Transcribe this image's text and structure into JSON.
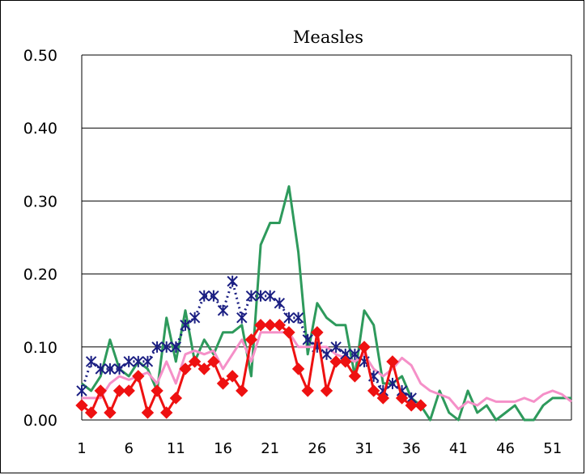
{
  "chart_data": {
    "type": "line",
    "title": "Measles",
    "xlabel": "",
    "ylabel": "",
    "ylim": [
      0,
      0.5
    ],
    "xlim": [
      1,
      53
    ],
    "y_ticks": [
      "0.00",
      "0.10",
      "0.20",
      "0.30",
      "0.40",
      "0.50"
    ],
    "y_tick_values": [
      0,
      0.1,
      0.2,
      0.3,
      0.4,
      0.5
    ],
    "x_ticks": [
      "1",
      "6",
      "11",
      "16",
      "21",
      "26",
      "31",
      "36",
      "41",
      "46",
      "51"
    ],
    "x_tick_values": [
      1,
      6,
      11,
      16,
      21,
      26,
      31,
      36,
      41,
      46,
      51
    ],
    "grid": "horizontal",
    "legend": "none",
    "series": [
      {
        "color": "#2e9a5c",
        "marker": "none",
        "line": "solid",
        "x": [
          1,
          2,
          3,
          4,
          5,
          6,
          7,
          8,
          9,
          10,
          11,
          12,
          13,
          14,
          15,
          16,
          17,
          18,
          19,
          20,
          21,
          22,
          23,
          24,
          25,
          26,
          27,
          28,
          29,
          30,
          31,
          32,
          33,
          34,
          35,
          36,
          37,
          38,
          39,
          40,
          41,
          42,
          43,
          44,
          45,
          46,
          47,
          48,
          49,
          50,
          51,
          52,
          53
        ],
        "values": [
          0.05,
          0.04,
          0.06,
          0.11,
          0.07,
          0.06,
          0.08,
          0.07,
          0.04,
          0.14,
          0.08,
          0.15,
          0.08,
          0.11,
          0.09,
          0.12,
          0.12,
          0.13,
          0.06,
          0.24,
          0.27,
          0.27,
          0.32,
          0.23,
          0.09,
          0.16,
          0.14,
          0.13,
          0.13,
          0.06,
          0.15,
          0.13,
          0.05,
          0.05,
          0.06,
          0.03,
          0.02,
          0.0,
          0.04,
          0.01,
          0.0,
          0.04,
          0.01,
          0.02,
          0.0,
          0.01,
          0.02,
          0.0,
          0.0,
          0.02,
          0.03,
          0.03,
          0.03
        ]
      },
      {
        "color": "#f590c8",
        "marker": "none",
        "line": "solid",
        "x": [
          1,
          2,
          3,
          4,
          5,
          6,
          7,
          8,
          9,
          10,
          11,
          12,
          13,
          14,
          15,
          16,
          17,
          18,
          19,
          20,
          21,
          22,
          23,
          24,
          25,
          26,
          27,
          28,
          29,
          30,
          31,
          32,
          33,
          34,
          35,
          36,
          37,
          38,
          39,
          40,
          41,
          42,
          43,
          44,
          45,
          46,
          47,
          48,
          49,
          50,
          51,
          52,
          53
        ],
        "values": [
          0.03,
          0.03,
          0.03,
          0.05,
          0.06,
          0.055,
          0.06,
          0.065,
          0.05,
          0.08,
          0.05,
          0.09,
          0.095,
          0.09,
          0.095,
          0.07,
          0.09,
          0.11,
          0.08,
          0.12,
          0.12,
          0.12,
          0.12,
          0.1,
          0.1,
          0.1,
          0.1,
          0.09,
          0.085,
          0.08,
          0.09,
          0.07,
          0.06,
          0.07,
          0.085,
          0.075,
          0.05,
          0.04,
          0.035,
          0.03,
          0.015,
          0.025,
          0.02,
          0.03,
          0.025,
          0.025,
          0.025,
          0.03,
          0.025,
          0.035,
          0.04,
          0.035,
          0.025
        ]
      },
      {
        "color": "#1a1e82",
        "marker": "asterisk",
        "line": "dotted",
        "x": [
          1,
          2,
          3,
          4,
          5,
          6,
          7,
          8,
          9,
          10,
          11,
          12,
          13,
          14,
          15,
          16,
          17,
          18,
          19,
          20,
          21,
          22,
          23,
          24,
          25,
          26,
          27,
          28,
          29,
          30,
          31,
          32,
          33,
          34,
          35,
          36
        ],
        "values": [
          0.04,
          0.08,
          0.07,
          0.07,
          0.07,
          0.08,
          0.08,
          0.08,
          0.1,
          0.1,
          0.1,
          0.13,
          0.14,
          0.17,
          0.17,
          0.15,
          0.19,
          0.14,
          0.17,
          0.17,
          0.17,
          0.16,
          0.14,
          0.14,
          0.11,
          0.1,
          0.09,
          0.1,
          0.09,
          0.09,
          0.08,
          0.06,
          0.04,
          0.05,
          0.04,
          0.03
        ]
      },
      {
        "color": "#ee1111",
        "marker": "diamond",
        "line": "solid",
        "x": [
          1,
          2,
          3,
          4,
          5,
          6,
          7,
          8,
          9,
          10,
          11,
          12,
          13,
          14,
          15,
          16,
          17,
          18,
          19,
          20,
          21,
          22,
          23,
          24,
          25,
          26,
          27,
          28,
          29,
          30,
          31,
          32,
          33,
          34,
          35,
          36,
          37
        ],
        "values": [
          0.02,
          0.01,
          0.04,
          0.01,
          0.04,
          0.04,
          0.06,
          0.01,
          0.04,
          0.01,
          0.03,
          0.07,
          0.08,
          0.07,
          0.08,
          0.05,
          0.06,
          0.04,
          0.11,
          0.13,
          0.13,
          0.13,
          0.12,
          0.07,
          0.04,
          0.12,
          0.04,
          0.08,
          0.08,
          0.06,
          0.1,
          0.04,
          0.03,
          0.08,
          0.03,
          0.02,
          0.02
        ]
      }
    ]
  }
}
